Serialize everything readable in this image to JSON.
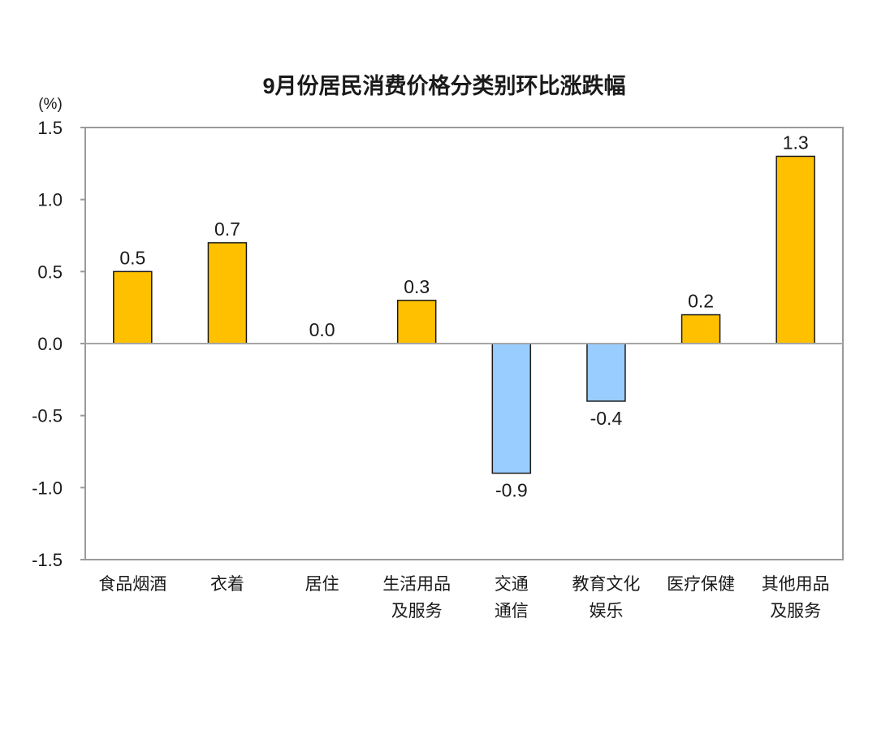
{
  "chart_data": {
    "type": "bar",
    "title": "9月份居民消费价格分类别环比涨跌幅",
    "unit_label": "(%)",
    "ylim": [
      -1.5,
      1.5
    ],
    "yticks": [
      "1.5",
      "1.0",
      "0.5",
      "0.0",
      "-0.5",
      "-1.0",
      "-1.5"
    ],
    "ytick_values": [
      1.5,
      1.0,
      0.5,
      0.0,
      -0.5,
      -1.0,
      -1.5
    ],
    "categories": [
      [
        "食品烟酒"
      ],
      [
        "衣着"
      ],
      [
        "居住"
      ],
      [
        "生活用品",
        "及服务"
      ],
      [
        "交通",
        "通信"
      ],
      [
        "教育文化",
        "娱乐"
      ],
      [
        "医疗保健"
      ],
      [
        "其他用品",
        "及服务"
      ]
    ],
    "values": [
      0.5,
      0.7,
      0.0,
      0.3,
      -0.9,
      -0.4,
      0.2,
      1.3
    ],
    "value_labels": [
      "0.5",
      "0.7",
      "0.0",
      "0.3",
      "-0.9",
      "-0.4",
      "0.2",
      "1.3"
    ],
    "grid": false,
    "legend": "none",
    "colors": {
      "positive": "#FFC000",
      "negative": "#99CCFF",
      "bar_edge": "#1a1a1a",
      "frame": "#9a9a9a",
      "zero_line": "#a6a6a6"
    }
  }
}
